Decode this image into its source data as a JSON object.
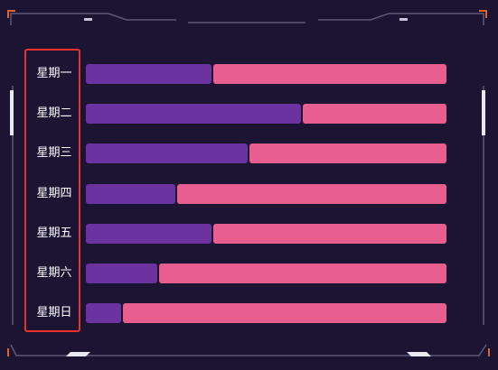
{
  "chart_data": {
    "type": "bar",
    "orientation": "horizontal",
    "stacked": true,
    "categories": [
      "星期一",
      "星期二",
      "星期三",
      "星期四",
      "星期五",
      "星期六",
      "星期日"
    ],
    "series": [
      {
        "values": [
          35,
          60,
          45,
          25,
          35,
          20,
          10
        ]
      },
      {
        "values": [
          65,
          40,
          55,
          75,
          65,
          80,
          90
        ]
      }
    ],
    "xlim": [
      0,
      100
    ],
    "grid": false,
    "legend": "none"
  },
  "colors": {
    "background": "#1b1533",
    "primary_bar": "#6b32a0",
    "secondary_bar": "#e85f8f",
    "frame_line": "#5d5879",
    "frame_accent": "#e0622a",
    "highlight_box": "#e8322c",
    "label_text": "#ffffff"
  }
}
